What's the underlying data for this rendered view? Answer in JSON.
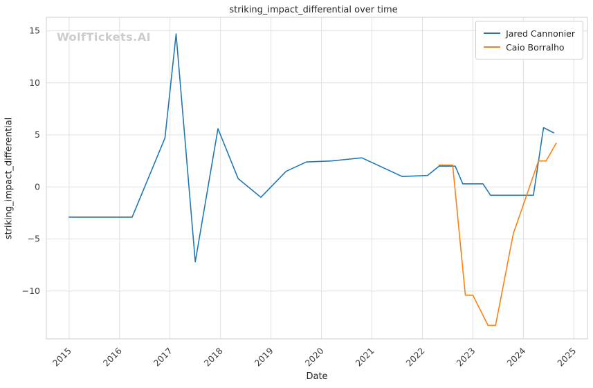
{
  "chart_data": {
    "type": "line",
    "title": "striking_impact_differential over time",
    "watermark": "WolfTickets.AI",
    "xlabel": "Date",
    "ylabel": "striking_impact_differential",
    "xlim": [
      2014.55,
      2025.27
    ],
    "ylim": [
      -14.6,
      16.3
    ],
    "xticks": [
      2015,
      2016,
      2017,
      2018,
      2019,
      2020,
      2021,
      2022,
      2023,
      2024,
      2025
    ],
    "yticks": [
      -10,
      -5,
      0,
      5,
      10,
      15
    ],
    "grid": true,
    "legend_position": "upper right",
    "colors": {
      "grid": "#e0e0e0",
      "spine": "#cccccc",
      "tick_text": "#3b3b3b"
    },
    "series": [
      {
        "name": "Jared Cannonier",
        "color": "#1f77b4",
        "points": [
          [
            2015.0,
            -2.9
          ],
          [
            2016.25,
            -2.9
          ],
          [
            2016.9,
            4.7
          ],
          [
            2017.12,
            14.7
          ],
          [
            2017.5,
            -7.2
          ],
          [
            2017.95,
            5.6
          ],
          [
            2018.35,
            0.8
          ],
          [
            2018.8,
            -1.0
          ],
          [
            2019.3,
            1.5
          ],
          [
            2019.7,
            2.4
          ],
          [
            2020.2,
            2.5
          ],
          [
            2020.8,
            2.8
          ],
          [
            2021.6,
            1.0
          ],
          [
            2022.1,
            1.1
          ],
          [
            2022.33,
            2.0
          ],
          [
            2022.65,
            2.0
          ],
          [
            2022.8,
            0.3
          ],
          [
            2023.2,
            0.3
          ],
          [
            2023.35,
            -0.8
          ],
          [
            2024.2,
            -0.8
          ],
          [
            2024.4,
            5.7
          ],
          [
            2024.6,
            5.2
          ]
        ]
      },
      {
        "name": "Caio Borralho",
        "color": "#ff7f0e",
        "points": [
          [
            2022.33,
            2.1
          ],
          [
            2022.6,
            2.1
          ],
          [
            2022.85,
            -10.4
          ],
          [
            2023.0,
            -10.4
          ],
          [
            2023.3,
            -13.3
          ],
          [
            2023.45,
            -13.3
          ],
          [
            2023.8,
            -4.5
          ],
          [
            2024.3,
            2.5
          ],
          [
            2024.45,
            2.5
          ],
          [
            2024.65,
            4.2
          ]
        ]
      }
    ]
  }
}
